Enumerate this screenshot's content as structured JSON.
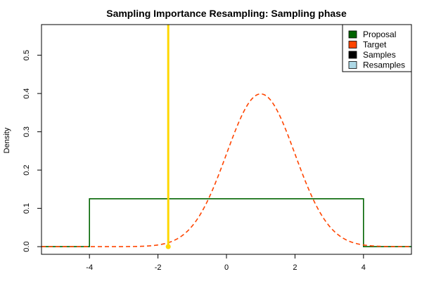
{
  "chart_data": {
    "type": "line",
    "title": "Sampling Importance Resampling: Sampling phase",
    "xlabel": "",
    "ylabel": "Density",
    "xlim": [
      -5.4,
      5.4
    ],
    "ylim": [
      -0.02,
      0.58
    ],
    "x_ticks": [
      -4,
      -2,
      0,
      2,
      4
    ],
    "y_ticks": [
      0.0,
      0.1,
      0.2,
      0.3,
      0.4,
      0.5
    ],
    "x_tick_labels": [
      "-4",
      "-2",
      "0",
      "2",
      "4"
    ],
    "y_tick_labels": [
      "0.0",
      "0.1",
      "0.2",
      "0.3",
      "0.4",
      "0.5"
    ],
    "grid": false,
    "legend_position": "top-right",
    "legend": [
      {
        "label": "Proposal",
        "color": "#006400"
      },
      {
        "label": "Target",
        "color": "#ff4500"
      },
      {
        "label": "Samples",
        "color": "#000000"
      },
      {
        "label": "Resamples",
        "color": "#add8e6"
      }
    ],
    "proposal": {
      "name": "Proposal",
      "color": "#006400",
      "distribution": "uniform",
      "min": -4,
      "max": 4,
      "density": 0.125,
      "line_style": "solid"
    },
    "target": {
      "name": "Target",
      "color": "#ff4500",
      "distribution": "normal",
      "mean": 1,
      "sd": 1,
      "peak_density": 0.399,
      "line_style": "dashed"
    },
    "sample_marker": {
      "color": "#ffd700",
      "x": -1.7,
      "y": 0
    }
  }
}
